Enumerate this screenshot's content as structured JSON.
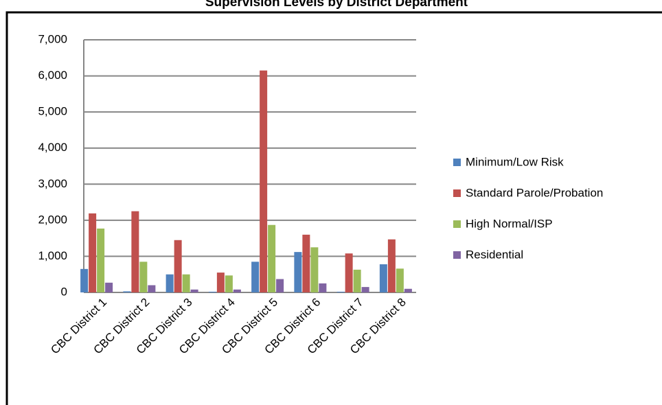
{
  "chart_data": {
    "type": "bar",
    "title": "Supervision Levels by District Department",
    "categories": [
      "CBC District 1",
      "CBC District 2",
      "CBC District 3",
      "CBC District 4",
      "CBC District 5",
      "CBC District 6",
      "CBC District 7",
      "CBC District 8"
    ],
    "series": [
      {
        "name": "Minimum/Low Risk",
        "color": "#4f81bd",
        "values": [
          650,
          30,
          500,
          20,
          850,
          1120,
          20,
          780
        ]
      },
      {
        "name": "Standard Parole/Probation",
        "color": "#c0504d",
        "values": [
          2190,
          2250,
          1450,
          550,
          6150,
          1600,
          1080,
          1470
        ]
      },
      {
        "name": "High Normal/ISP",
        "color": "#9bbb59",
        "values": [
          1770,
          850,
          500,
          470,
          1870,
          1250,
          630,
          660
        ]
      },
      {
        "name": "Residential",
        "color": "#8064a2",
        "values": [
          270,
          200,
          80,
          80,
          370,
          250,
          150,
          100
        ]
      }
    ],
    "ylim": [
      0,
      7000
    ],
    "yticks": [
      0,
      {
        "value": 1000,
        "label": "1,000"
      },
      {
        "value": 2000,
        "label": "2,000"
      },
      {
        "value": 3000,
        "label": "3,000"
      },
      {
        "value": 4000,
        "label": "4,000"
      },
      {
        "value": 5000,
        "label": "5,000"
      },
      {
        "value": 6000,
        "label": "6,000"
      },
      {
        "value": 7000,
        "label": "7,000"
      }
    ],
    "grid": true,
    "legend": "right"
  }
}
